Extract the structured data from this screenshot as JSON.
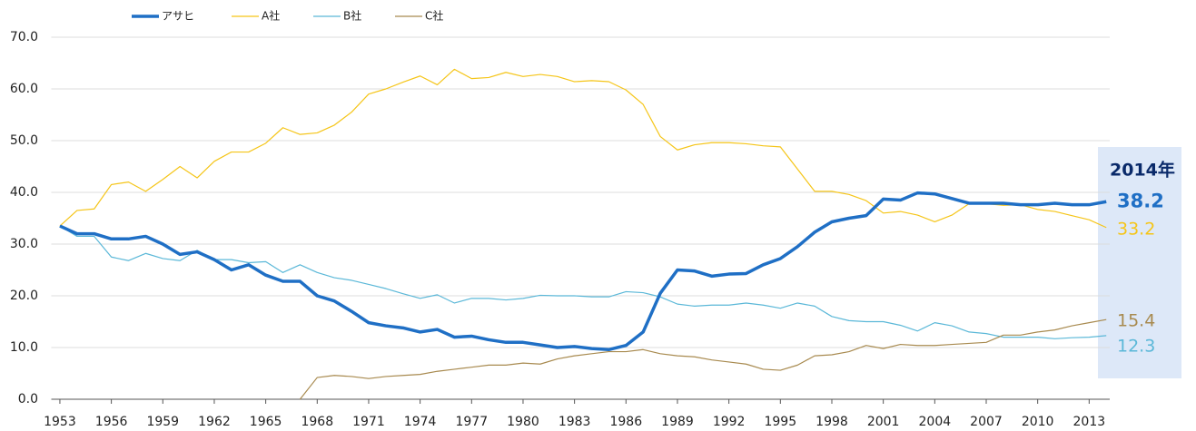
{
  "chart_data": {
    "type": "line",
    "annotation": "2014年",
    "x": [
      1953,
      1954,
      1955,
      1956,
      1957,
      1958,
      1959,
      1960,
      1961,
      1962,
      1963,
      1964,
      1965,
      1966,
      1967,
      1968,
      1969,
      1970,
      1971,
      1972,
      1973,
      1974,
      1975,
      1976,
      1977,
      1978,
      1979,
      1980,
      1981,
      1982,
      1983,
      1984,
      1985,
      1986,
      1987,
      1988,
      1989,
      1990,
      1991,
      1992,
      1993,
      1994,
      1995,
      1996,
      1997,
      1998,
      1999,
      2000,
      2001,
      2002,
      2003,
      2004,
      2005,
      2006,
      2007,
      2008,
      2009,
      2010,
      2011,
      2012,
      2013,
      2014
    ],
    "series": [
      {
        "name": "アサヒ",
        "color": "#1f6fc5",
        "values": [
          33.5,
          32,
          32,
          31,
          31,
          31.5,
          30,
          28,
          28.5,
          27,
          25,
          26,
          24,
          22.8,
          22.8,
          20,
          19,
          17,
          14.8,
          14.2,
          13.8,
          13,
          13.5,
          12,
          12.2,
          11.5,
          11,
          11,
          10.5,
          10,
          10.2,
          9.8,
          9.6,
          10.4,
          13,
          20.5,
          25,
          24.8,
          23.8,
          24.2,
          24.3,
          26,
          27.2,
          29.5,
          32.3,
          34.3,
          35,
          35.5,
          38.7,
          38.5,
          39.9,
          39.7,
          38.8,
          37.9,
          37.9,
          37.9,
          37.6,
          37.6,
          37.9,
          37.6,
          37.6,
          38.2
        ]
      },
      {
        "name": "A社",
        "color": "#f5c518",
        "values": [
          33.5,
          36.5,
          36.8,
          41.5,
          42,
          40.2,
          42.5,
          45,
          42.8,
          46,
          47.8,
          47.8,
          49.5,
          52.5,
          51.2,
          51.5,
          53,
          55.5,
          59,
          60,
          61.3,
          62.5,
          60.8,
          63.8,
          62,
          62.2,
          63.2,
          62.4,
          62.8,
          62.4,
          61.4,
          61.6,
          61.4,
          59.8,
          57,
          50.8,
          48.2,
          49.2,
          49.6,
          49.6,
          49.4,
          49,
          48.8,
          44.5,
          40.2,
          40.2,
          39.6,
          38.4,
          36,
          36.3,
          35.6,
          34.3,
          35.6,
          37.8,
          37.8,
          37.5,
          37.6,
          36.7,
          36.3,
          35.5,
          34.7,
          33.2
        ]
      },
      {
        "name": "B社",
        "color": "#5bb8d8",
        "values": [
          33.5,
          31.5,
          31.5,
          27.5,
          26.8,
          28.2,
          27.2,
          26.8,
          28.8,
          27,
          27,
          26.4,
          26.6,
          24.5,
          26,
          24.5,
          23.5,
          23,
          22.2,
          21.4,
          20.4,
          19.5,
          20.2,
          18.6,
          19.5,
          19.5,
          19.2,
          19.5,
          20.1,
          20,
          20,
          19.8,
          19.8,
          20.8,
          20.6,
          19.8,
          18.4,
          18,
          18.2,
          18.2,
          18.6,
          18.2,
          17.6,
          18.6,
          18,
          16,
          15.2,
          15,
          15,
          14.3,
          13.2,
          14.8,
          14.2,
          13,
          12.7,
          12,
          12,
          12,
          11.7,
          11.9,
          12,
          12.3
        ]
      },
      {
        "name": "C社",
        "color": "#a88a4f",
        "values": [
          null,
          null,
          null,
          null,
          null,
          null,
          null,
          null,
          null,
          null,
          null,
          null,
          null,
          null,
          0,
          4.2,
          4.6,
          4.4,
          4,
          4.4,
          4.6,
          4.8,
          5.4,
          5.8,
          6.2,
          6.6,
          6.6,
          7,
          6.8,
          7.8,
          8.4,
          8.8,
          9.2,
          9.2,
          9.6,
          8.8,
          8.4,
          8.2,
          7.6,
          7.2,
          6.8,
          5.8,
          5.6,
          6.6,
          8.4,
          8.6,
          9.2,
          10.4,
          9.8,
          10.6,
          10.4,
          10.4,
          10.6,
          10.8,
          11,
          12.4,
          12.4,
          13,
          13.4,
          14.2,
          14.8,
          15.4
        ]
      }
    ],
    "xlim": [
      1952.5,
      2014.2
    ],
    "xticks": [
      1953,
      1956,
      1959,
      1962,
      1965,
      1968,
      1971,
      1974,
      1977,
      1980,
      1983,
      1986,
      1989,
      1992,
      1995,
      1998,
      2001,
      2004,
      2007,
      2010,
      2013
    ],
    "ylim": [
      0,
      70
    ],
    "yticks": [
      {
        "value": 0,
        "label": "0.0"
      },
      {
        "value": 10,
        "label": "10.0"
      },
      {
        "value": 20,
        "label": "20.0"
      },
      {
        "value": 30,
        "label": "30.0"
      },
      {
        "value": 40,
        "label": "40.0"
      },
      {
        "value": 50,
        "label": "50.0"
      },
      {
        "value": 60,
        "label": "60.0"
      },
      {
        "value": 70,
        "label": "70.0"
      }
    ],
    "grid": true
  }
}
